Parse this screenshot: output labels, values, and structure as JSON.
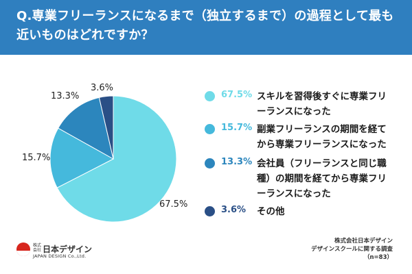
{
  "title": "Q.専業フリーランスになるまで（独立するまで）の過程として最も近いものはどれですか？",
  "chart_data": {
    "type": "pie",
    "title": "Q.専業フリーランスになるまで（独立するまで）の過程として最も近いものはどれですか？",
    "slices": [
      {
        "label": "スキルを習得後すぐに専業フリーランスになった",
        "value": 67.5,
        "display": "67.5%",
        "color": "#6fdbe8"
      },
      {
        "label": "副業フリーランスの期間を経てから専業フリーランスになった",
        "value": 15.7,
        "display": "15.7%",
        "color": "#45b9dc"
      },
      {
        "label": "会社員（フリーランスと同じ職種）の期間を経てから専業フリーランスになった",
        "value": 13.3,
        "display": "13.3%",
        "color": "#2c86bd"
      },
      {
        "label": "その他",
        "value": 3.6,
        "display": "3.6%",
        "color": "#2a4f86"
      }
    ],
    "legend_placement": "right"
  },
  "logo": {
    "small": "株式会社",
    "main": "日本デザイン",
    "sub": "JAPAN DESIGN Co.,Ltd."
  },
  "source": {
    "line1": "株式会社日本デザイン",
    "line2": "デザインスクールに関する調査",
    "line3": "（n=83）"
  },
  "colors": {
    "header": "#2f7fbf",
    "accent_red": "#d7261e"
  }
}
